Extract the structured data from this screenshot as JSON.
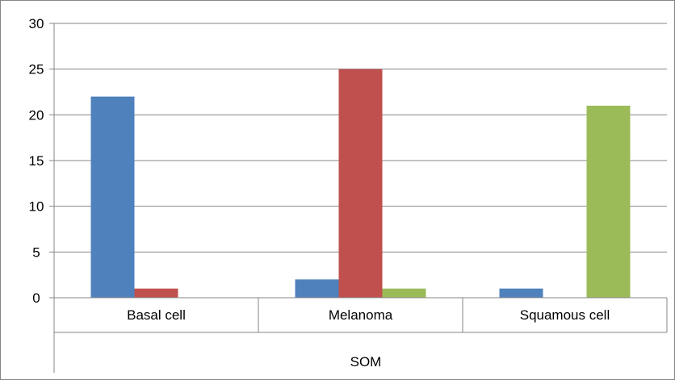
{
  "chart_data": {
    "type": "bar",
    "title": "",
    "xlabel": "",
    "ylabel": "",
    "group_label": "SOM",
    "categories": [
      "Basal cell",
      "Melanoma",
      "Squamous cell"
    ],
    "series": [
      {
        "values": [
          22,
          2,
          1
        ],
        "color": "#4F81BD"
      },
      {
        "values": [
          1,
          25,
          0
        ],
        "color": "#C0504D"
      },
      {
        "values": [
          0,
          1,
          21
        ],
        "color": "#9BBB59"
      }
    ],
    "ylim": [
      0,
      30
    ],
    "yticks": [
      0,
      5,
      10,
      15,
      20,
      25,
      30
    ],
    "grid": true,
    "legend": "none"
  },
  "colors": {
    "gridline": "#868686",
    "axis": "#868686",
    "frame": "#868686",
    "background": "#ffffff"
  }
}
